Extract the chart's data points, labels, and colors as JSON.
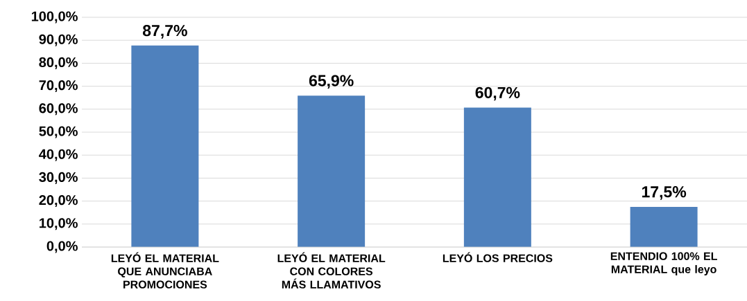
{
  "chart_data": {
    "type": "bar",
    "categories": [
      "LEYÓ EL MATERIAL QUE ANUNCIABA PROMOCIONES",
      "LEYÓ EL MATERIAL CON COLORES MÁS LLAMATIVOS",
      "LEYÓ LOS PRECIOS",
      "ENTENDIO 100% EL MATERIAL que leyo"
    ],
    "values": [
      87.7,
      65.9,
      60.7,
      17.5
    ],
    "value_labels": [
      "87,7%",
      "65,9%",
      "60,7%",
      "17,5%"
    ],
    "color": "#4f81bd",
    "ylim": [
      0,
      100
    ],
    "yticks": [
      {
        "value": 0,
        "label": "0,0%"
      },
      {
        "value": 10,
        "label": "10,0%"
      },
      {
        "value": 20,
        "label": "20,0%"
      },
      {
        "value": 30,
        "label": "30,0%"
      },
      {
        "value": 40,
        "label": "40,0%"
      },
      {
        "value": 50,
        "label": "50,0%"
      },
      {
        "value": 60,
        "label": "60,0%"
      },
      {
        "value": 70,
        "label": "70,0%"
      },
      {
        "value": 80,
        "label": "80,0%"
      },
      {
        "value": 90,
        "label": "90,0%"
      },
      {
        "value": 100,
        "label": "100,0%"
      }
    ],
    "grid": "y"
  }
}
